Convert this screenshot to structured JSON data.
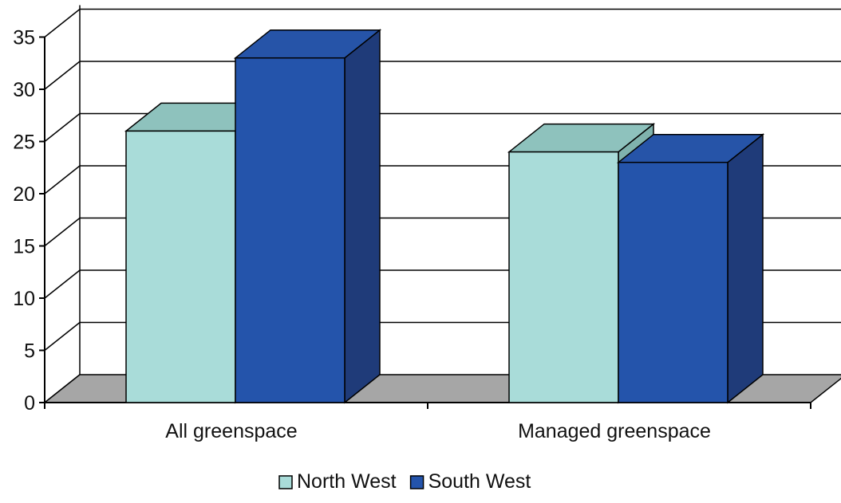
{
  "chart_data": {
    "type": "bar",
    "style": "3d-clustered-column",
    "categories": [
      "All greenspace",
      "Managed greenspace"
    ],
    "series": [
      {
        "name": "North West",
        "values": [
          26,
          24
        ],
        "color": "#a9dcd9",
        "top_color": "#8ec2bd",
        "side_color": "#7fb2ad"
      },
      {
        "name": "South West",
        "values": [
          33,
          23
        ],
        "color": "#2454ab",
        "top_color": "#2654a8",
        "side_color": "#1f3b79"
      }
    ],
    "y_ticks": [
      "0",
      "5",
      "10",
      "15",
      "20",
      "25",
      "30",
      "35"
    ],
    "ylim": [
      0,
      35
    ],
    "grid": true,
    "legend_position": "bottom",
    "floor_color": "#a6a6a6"
  }
}
